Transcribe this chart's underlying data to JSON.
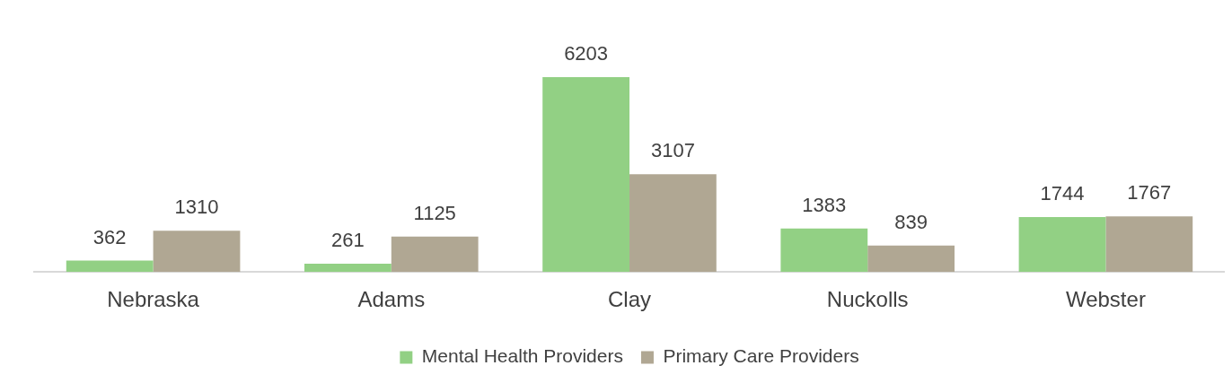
{
  "chart_data": {
    "type": "bar",
    "categories": [
      "Nebraska",
      "Adams",
      "Clay",
      "Nuckolls",
      "Webster"
    ],
    "series": [
      {
        "name": "Mental Health Providers",
        "color": "#92d084",
        "values": [
          362,
          261,
          6203,
          1383,
          1744
        ]
      },
      {
        "name": "Primary Care Providers",
        "color": "#b0a793",
        "values": [
          1310,
          1125,
          3107,
          839,
          1767
        ]
      }
    ],
    "data_labels": true,
    "legend": "bottom",
    "grid": false
  }
}
